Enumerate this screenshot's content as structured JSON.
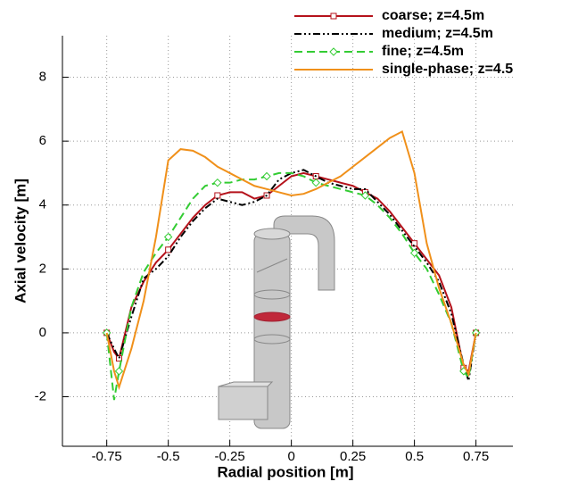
{
  "chart_data": {
    "type": "line",
    "x_label": "Radial position [m]",
    "y_label": "Axial velocity [m]",
    "x": [
      -0.75,
      -0.72,
      -0.7,
      -0.65,
      -0.6,
      -0.55,
      -0.5,
      -0.45,
      -0.4,
      -0.35,
      -0.3,
      -0.25,
      -0.2,
      -0.15,
      -0.1,
      -0.05,
      0,
      0.05,
      0.1,
      0.15,
      0.2,
      0.25,
      0.3,
      0.35,
      0.4,
      0.45,
      0.5,
      0.55,
      0.6,
      0.65,
      0.7,
      0.72,
      0.75
    ],
    "series": [
      {
        "name": "coarse; z=4.5m",
        "color": "#b5121b",
        "dash": "none",
        "marker": "square",
        "values": [
          0,
          -0.6,
          -0.8,
          0.8,
          1.6,
          2.2,
          2.6,
          3.1,
          3.6,
          4.0,
          4.3,
          4.4,
          4.4,
          4.2,
          4.3,
          4.6,
          4.9,
          5.0,
          4.9,
          4.8,
          4.7,
          4.6,
          4.4,
          4.2,
          3.8,
          3.3,
          2.8,
          2.3,
          1.8,
          0.8,
          -1.1,
          -1.2,
          0
        ]
      },
      {
        "name": "medium; z=4.5m",
        "color": "#000000",
        "dash": "8 3 2 3 2 3",
        "marker": "none",
        "values": [
          0,
          -0.5,
          -0.8,
          0.5,
          1.7,
          2.0,
          2.4,
          3.0,
          3.5,
          3.9,
          4.2,
          4.1,
          4.0,
          4.1,
          4.3,
          4.8,
          5.0,
          5.1,
          4.9,
          4.7,
          4.6,
          4.5,
          4.5,
          4.1,
          3.7,
          3.2,
          2.7,
          2.2,
          1.6,
          0.6,
          -1.0,
          -1.5,
          0
        ]
      },
      {
        "name": "fine; z=4.5m",
        "color": "#33cc33",
        "dash": "9 5",
        "marker": "diamond",
        "values": [
          0,
          -2.1,
          -1.2,
          0.8,
          1.9,
          2.5,
          3.0,
          3.6,
          4.2,
          4.6,
          4.7,
          4.7,
          4.8,
          4.8,
          4.9,
          5.0,
          5.0,
          4.9,
          4.7,
          4.6,
          4.5,
          4.4,
          4.3,
          4.0,
          3.6,
          3.1,
          2.5,
          2.0,
          1.2,
          0.3,
          -1.2,
          -1.4,
          0
        ]
      },
      {
        "name": "single-phase; z=4.5",
        "color": "#f0901a",
        "dash": "none",
        "marker": "none",
        "values": [
          0,
          -1.2,
          -1.7,
          -0.5,
          1.0,
          3.0,
          5.4,
          5.75,
          5.7,
          5.5,
          5.2,
          5.0,
          4.8,
          4.6,
          4.5,
          4.4,
          4.3,
          4.35,
          4.5,
          4.7,
          4.9,
          5.2,
          5.5,
          5.8,
          6.1,
          6.3,
          5.0,
          2.8,
          1.4,
          0.3,
          -1.0,
          -1.3,
          0
        ]
      }
    ],
    "xlim": [
      -0.93,
      0.9
    ],
    "ylim": [
      -3.55,
      9.3
    ],
    "xticks": [
      -0.75,
      -0.5,
      -0.25,
      0,
      0.25,
      0.5,
      0.75
    ],
    "yticks": [
      -2,
      0,
      2,
      4,
      6,
      8
    ],
    "grid": true,
    "legend": "upper right"
  }
}
